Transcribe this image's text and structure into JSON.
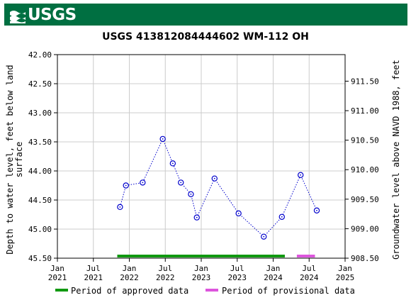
{
  "header": {
    "logo_text": "USGS",
    "brand_color": "#006f41",
    "logo_icon": "usgs-wave-icon"
  },
  "chart_data": {
    "type": "scatter",
    "title": "USGS 413812084444602 WM-112 OH",
    "ylabel_left": [
      "Depth to water level, feet below land",
      "surface"
    ],
    "ylabel_right": "Groundwater level above NAVD 1988, feet",
    "ylim_left": [
      45.5,
      42.0
    ],
    "ylim_right": [
      908.5,
      911.95
    ],
    "xlim": [
      "2021-01-01",
      "2025-01-01"
    ],
    "y_ticks_left": [
      "42.00",
      "42.50",
      "43.00",
      "43.50",
      "44.00",
      "44.50",
      "45.00",
      "45.50"
    ],
    "y_ticks_right": [
      "911.50",
      "911.00",
      "910.50",
      "910.00",
      "909.50",
      "909.00",
      "908.50"
    ],
    "x_ticks": [
      {
        "line1": "Jan",
        "line2": "2021"
      },
      {
        "line1": "Jul",
        "line2": "2021"
      },
      {
        "line1": "Jan",
        "line2": "2022"
      },
      {
        "line1": "Jul",
        "line2": "2022"
      },
      {
        "line1": "Jan",
        "line2": "2023"
      },
      {
        "line1": "Jul",
        "line2": "2023"
      },
      {
        "line1": "Jan",
        "line2": "2024"
      },
      {
        "line1": "Jul",
        "line2": "2024"
      },
      {
        "line1": "Jan",
        "line2": "2025"
      }
    ],
    "grid": true,
    "series": [
      {
        "marker": "circle-dot",
        "line": "dotted",
        "color": "#0000cc",
        "points": [
          {
            "x": "2021-11-15",
            "y": 44.62
          },
          {
            "x": "2021-12-15",
            "y": 44.25
          },
          {
            "x": "2022-03-10",
            "y": 44.2
          },
          {
            "x": "2022-06-20",
            "y": 43.45
          },
          {
            "x": "2022-08-10",
            "y": 43.87
          },
          {
            "x": "2022-09-20",
            "y": 44.2
          },
          {
            "x": "2022-11-10",
            "y": 44.4
          },
          {
            "x": "2022-12-10",
            "y": 44.8
          },
          {
            "x": "2023-03-10",
            "y": 44.13
          },
          {
            "x": "2023-07-10",
            "y": 44.73
          },
          {
            "x": "2023-11-15",
            "y": 45.13
          },
          {
            "x": "2024-02-15",
            "y": 44.79
          },
          {
            "x": "2024-05-20",
            "y": 44.07
          },
          {
            "x": "2024-08-10",
            "y": 44.68
          }
        ]
      }
    ],
    "periods": [
      {
        "name": "Period of approved data",
        "color": "#119911",
        "start": "2021-11-01",
        "end": "2024-03-01"
      },
      {
        "name": "Period of provisional data",
        "color": "#dd55dd",
        "start": "2024-05-01",
        "end": "2024-08-01"
      }
    ],
    "legend_placement": "bottom"
  }
}
